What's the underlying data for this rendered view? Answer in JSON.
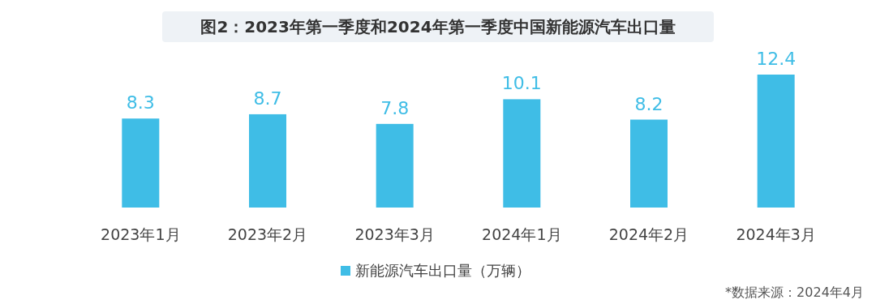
{
  "chart_data": {
    "type": "bar",
    "title": "图2：2023年第一季度和2024年第一季度中国新能源汽车出口量",
    "categories": [
      "2023年1月",
      "2023年2月",
      "2023年3月",
      "2024年1月",
      "2024年2月",
      "2024年3月"
    ],
    "series": [
      {
        "name": "新能源汽车出口量（万辆）",
        "color": "#3fbde6",
        "values": [
          8.3,
          8.7,
          7.8,
          10.1,
          8.2,
          12.4
        ]
      }
    ],
    "data_labels": true,
    "legend": "bottom",
    "annotations": [
      "*数据来源：2024年4月"
    ]
  }
}
